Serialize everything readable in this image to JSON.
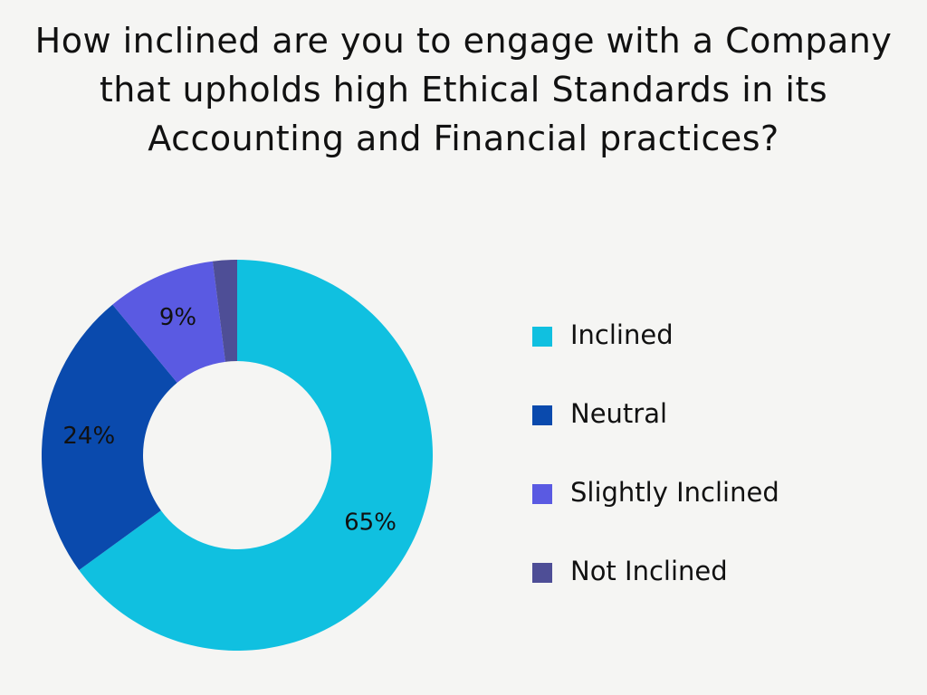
{
  "chart_data": {
    "type": "donut",
    "title": "How inclined are you to engage with a Company that upholds high Ethical Standards in its Accounting and Financial practices?",
    "categories": [
      "Inclined",
      "Neutral",
      "Slightly Inclined",
      "Not Inclined"
    ],
    "values": [
      65,
      24,
      9,
      2
    ],
    "value_labels": [
      "65%",
      "24%",
      "9%",
      null
    ],
    "colors": [
      "#10c0e0",
      "#0a4aad",
      "#5a5ae2",
      "#4e4e96"
    ],
    "legend": "right"
  }
}
